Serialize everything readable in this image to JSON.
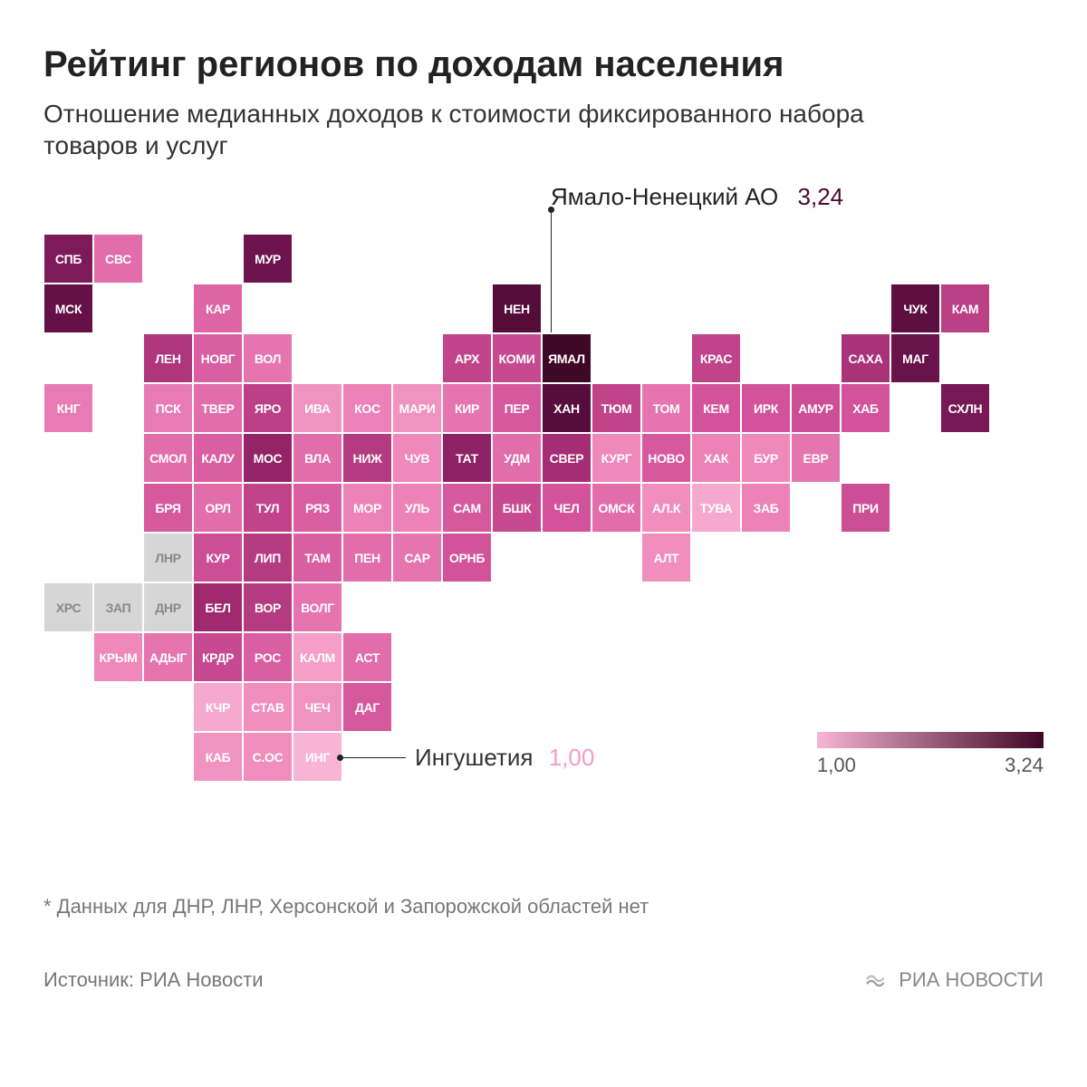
{
  "title": "Рейтинг регионов по доходам населения",
  "subtitle": "Отношение медианных доходов к стоимости фиксированного набора товаров и услуг",
  "callout_max": {
    "label": "Ямало-Ненецкий АО",
    "value": "3,24",
    "color": "#4a0a2e"
  },
  "callout_min": {
    "label": "Ингушетия",
    "value": "1,00",
    "color": "#f79bc4"
  },
  "legend": {
    "min": "1,00",
    "max": "3,24",
    "gradient_from": "#f8b4d4",
    "gradient_to": "#3f0826"
  },
  "footnote": "* Данных для ДНР, ЛНР, Херсонской и Запорожской областей нет",
  "source": "Источник: РИА Новости",
  "brand": "РИА НОВОСТИ",
  "cell_size": 55,
  "grid_cols": 20,
  "grid_rows": 12,
  "value_range": [
    1.0,
    3.24
  ],
  "color_stops": [
    {
      "t": 0.0,
      "hex": "#f8b4d4"
    },
    {
      "t": 0.18,
      "hex": "#ef88bb"
    },
    {
      "t": 0.35,
      "hex": "#d4549b"
    },
    {
      "t": 0.55,
      "hex": "#a02a70"
    },
    {
      "t": 0.75,
      "hex": "#6f1450"
    },
    {
      "t": 1.0,
      "hex": "#3f0826"
    }
  ],
  "nodata_color": "#d6d6d6",
  "regions": [
    {
      "abbr": "СПБ",
      "col": 0,
      "row": 0,
      "v": 2.55
    },
    {
      "abbr": "СВС",
      "col": 1,
      "row": 0,
      "v": 1.6
    },
    {
      "abbr": "МУР",
      "col": 4,
      "row": 0,
      "v": 2.7
    },
    {
      "abbr": "МСК",
      "col": 0,
      "row": 1,
      "v": 2.8
    },
    {
      "abbr": "КАР",
      "col": 3,
      "row": 1,
      "v": 1.65
    },
    {
      "abbr": "НЕН",
      "col": 9,
      "row": 1,
      "v": 3.0
    },
    {
      "abbr": "ЧУК",
      "col": 17,
      "row": 1,
      "v": 2.9
    },
    {
      "abbr": "КАМ",
      "col": 18,
      "row": 1,
      "v": 2.0
    },
    {
      "abbr": "ЛЕН",
      "col": 2,
      "row": 2,
      "v": 2.1
    },
    {
      "abbr": "НОВГ",
      "col": 3,
      "row": 2,
      "v": 1.7
    },
    {
      "abbr": "ВОЛ",
      "col": 4,
      "row": 2,
      "v": 1.55
    },
    {
      "abbr": "АРХ",
      "col": 8,
      "row": 2,
      "v": 1.95
    },
    {
      "abbr": "КОМИ",
      "col": 9,
      "row": 2,
      "v": 1.9
    },
    {
      "abbr": "ЯМАЛ",
      "col": 10,
      "row": 2,
      "v": 3.24
    },
    {
      "abbr": "КРАС",
      "col": 13,
      "row": 2,
      "v": 1.95
    },
    {
      "abbr": "САХА",
      "col": 16,
      "row": 2,
      "v": 2.15
    },
    {
      "abbr": "МАГ",
      "col": 17,
      "row": 2,
      "v": 2.75
    },
    {
      "abbr": "КНГ",
      "col": 0,
      "row": 3,
      "v": 1.5
    },
    {
      "abbr": "ПСК",
      "col": 2,
      "row": 3,
      "v": 1.5
    },
    {
      "abbr": "ТВЕР",
      "col": 3,
      "row": 3,
      "v": 1.6
    },
    {
      "abbr": "ЯРО",
      "col": 4,
      "row": 3,
      "v": 2.0
    },
    {
      "abbr": "ИВА",
      "col": 5,
      "row": 3,
      "v": 1.3
    },
    {
      "abbr": "КОС",
      "col": 6,
      "row": 3,
      "v": 1.45
    },
    {
      "abbr": "МАРИ",
      "col": 7,
      "row": 3,
      "v": 1.3
    },
    {
      "abbr": "КИР",
      "col": 8,
      "row": 3,
      "v": 1.55
    },
    {
      "abbr": "ПЕР",
      "col": 9,
      "row": 3,
      "v": 1.75
    },
    {
      "abbr": "ХАН",
      "col": 10,
      "row": 3,
      "v": 2.95
    },
    {
      "abbr": "ТЮМ",
      "col": 11,
      "row": 3,
      "v": 1.95
    },
    {
      "abbr": "ТОМ",
      "col": 12,
      "row": 3,
      "v": 1.55
    },
    {
      "abbr": "КЕМ",
      "col": 13,
      "row": 3,
      "v": 1.8
    },
    {
      "abbr": "ИРК",
      "col": 14,
      "row": 3,
      "v": 1.8
    },
    {
      "abbr": "АМУР",
      "col": 15,
      "row": 3,
      "v": 1.85
    },
    {
      "abbr": "ХАБ",
      "col": 16,
      "row": 3,
      "v": 1.8
    },
    {
      "abbr": "СХЛН",
      "col": 18,
      "row": 3,
      "v": 2.6
    },
    {
      "abbr": "СМОЛ",
      "col": 2,
      "row": 4,
      "v": 1.6
    },
    {
      "abbr": "КАЛУ",
      "col": 3,
      "row": 4,
      "v": 1.7
    },
    {
      "abbr": "МОС",
      "col": 4,
      "row": 4,
      "v": 2.35
    },
    {
      "abbr": "ВЛА",
      "col": 5,
      "row": 4,
      "v": 1.6
    },
    {
      "abbr": "НИЖ",
      "col": 6,
      "row": 4,
      "v": 2.05
    },
    {
      "abbr": "ЧУВ",
      "col": 7,
      "row": 4,
      "v": 1.4
    },
    {
      "abbr": "ТАТ",
      "col": 8,
      "row": 4,
      "v": 2.4
    },
    {
      "abbr": "УДМ",
      "col": 9,
      "row": 4,
      "v": 1.6
    },
    {
      "abbr": "СВЕР",
      "col": 10,
      "row": 4,
      "v": 2.2
    },
    {
      "abbr": "КУРГ",
      "col": 11,
      "row": 4,
      "v": 1.4
    },
    {
      "abbr": "НОВО",
      "col": 12,
      "row": 4,
      "v": 1.75
    },
    {
      "abbr": "ХАК",
      "col": 13,
      "row": 4,
      "v": 1.45
    },
    {
      "abbr": "БУР",
      "col": 14,
      "row": 4,
      "v": 1.4
    },
    {
      "abbr": "ЕВР",
      "col": 15,
      "row": 4,
      "v": 1.55
    },
    {
      "abbr": "БРЯ",
      "col": 2,
      "row": 5,
      "v": 1.75
    },
    {
      "abbr": "ОРЛ",
      "col": 3,
      "row": 5,
      "v": 1.6
    },
    {
      "abbr": "ТУЛ",
      "col": 4,
      "row": 5,
      "v": 1.95
    },
    {
      "abbr": "РЯЗ",
      "col": 5,
      "row": 5,
      "v": 1.7
    },
    {
      "abbr": "МОР",
      "col": 6,
      "row": 5,
      "v": 1.45
    },
    {
      "abbr": "УЛЬ",
      "col": 7,
      "row": 5,
      "v": 1.45
    },
    {
      "abbr": "САМ",
      "col": 8,
      "row": 5,
      "v": 1.75
    },
    {
      "abbr": "БШК",
      "col": 9,
      "row": 5,
      "v": 1.9
    },
    {
      "abbr": "ЧЕЛ",
      "col": 10,
      "row": 5,
      "v": 1.8
    },
    {
      "abbr": "ОМСК",
      "col": 11,
      "row": 5,
      "v": 1.6
    },
    {
      "abbr": "АЛ.К",
      "col": 12,
      "row": 5,
      "v": 1.35
    },
    {
      "abbr": "ТУВА",
      "col": 13,
      "row": 5,
      "v": 1.1
    },
    {
      "abbr": "ЗАБ",
      "col": 14,
      "row": 5,
      "v": 1.45
    },
    {
      "abbr": "ПРИ",
      "col": 16,
      "row": 5,
      "v": 1.85
    },
    {
      "abbr": "ЛНР",
      "col": 2,
      "row": 6,
      "nodata": true
    },
    {
      "abbr": "КУР",
      "col": 3,
      "row": 6,
      "v": 1.85
    },
    {
      "abbr": "ЛИП",
      "col": 4,
      "row": 6,
      "v": 2.05
    },
    {
      "abbr": "ТАМ",
      "col": 5,
      "row": 6,
      "v": 1.7
    },
    {
      "abbr": "ПЕН",
      "col": 6,
      "row": 6,
      "v": 1.6
    },
    {
      "abbr": "САР",
      "col": 7,
      "row": 6,
      "v": 1.55
    },
    {
      "abbr": "ОРНБ",
      "col": 8,
      "row": 6,
      "v": 1.8
    },
    {
      "abbr": "АЛТ",
      "col": 12,
      "row": 6,
      "v": 1.35
    },
    {
      "abbr": "ХРС",
      "col": 0,
      "row": 7,
      "nodata": true
    },
    {
      "abbr": "ЗАП",
      "col": 1,
      "row": 7,
      "nodata": true
    },
    {
      "abbr": "ДНР",
      "col": 2,
      "row": 7,
      "nodata": true
    },
    {
      "abbr": "БЕЛ",
      "col": 3,
      "row": 7,
      "v": 2.25
    },
    {
      "abbr": "ВОР",
      "col": 4,
      "row": 7,
      "v": 2.05
    },
    {
      "abbr": "ВОЛГ",
      "col": 5,
      "row": 7,
      "v": 1.55
    },
    {
      "abbr": "КРЫМ",
      "col": 1,
      "row": 8,
      "v": 1.4
    },
    {
      "abbr": "АДЫГ",
      "col": 2,
      "row": 8,
      "v": 1.55
    },
    {
      "abbr": "КРДР",
      "col": 3,
      "row": 8,
      "v": 1.9
    },
    {
      "abbr": "РОС",
      "col": 4,
      "row": 8,
      "v": 1.7
    },
    {
      "abbr": "КАЛМ",
      "col": 5,
      "row": 8,
      "v": 1.2
    },
    {
      "abbr": "АСТ",
      "col": 6,
      "row": 8,
      "v": 1.6
    },
    {
      "abbr": "КЧР",
      "col": 3,
      "row": 9,
      "v": 1.1
    },
    {
      "abbr": "СТАВ",
      "col": 4,
      "row": 9,
      "v": 1.35
    },
    {
      "abbr": "ЧЕЧ",
      "col": 5,
      "row": 9,
      "v": 1.3
    },
    {
      "abbr": "ДАГ",
      "col": 6,
      "row": 9,
      "v": 1.75
    },
    {
      "abbr": "КАБ",
      "col": 3,
      "row": 10,
      "v": 1.3
    },
    {
      "abbr": "С.ОС",
      "col": 4,
      "row": 10,
      "v": 1.35
    },
    {
      "abbr": "ИНГ",
      "col": 5,
      "row": 10,
      "v": 1.0
    }
  ]
}
